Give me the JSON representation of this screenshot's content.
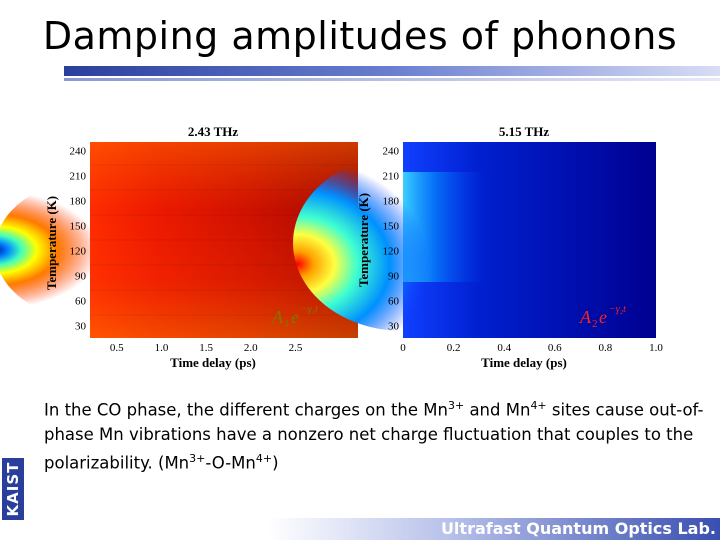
{
  "title": "Damping amplitudes of phonons",
  "caption": {
    "part1": "In the CO phase, the different charges on the Mn",
    "sup1": "3+",
    "part2": " and Mn",
    "sup2": "4+",
    "part3": " sites cause out-of-phase Mn vibrations have a nonzero net charge fluctuation that couples to the polarizability. (Mn",
    "sup3": "3+",
    "part4": "-O-Mn",
    "sup4": "4+",
    "part5": ")"
  },
  "logo_text": "KAIST",
  "footer": "Ultrafast Quantum Optics Lab.",
  "colors": {
    "accent": "#2a3f9c"
  },
  "chart_data": [
    {
      "type": "heatmap",
      "title": "2.43 THz",
      "xlabel": "Time delay (ps)",
      "ylabel": "Temperature (K)",
      "xticks": [
        "0.5",
        "1.0",
        "1.5",
        "2.0",
        "2.5"
      ],
      "yticks": [
        "30",
        "60",
        "90",
        "120",
        "150",
        "180",
        "210",
        "240"
      ],
      "xlim": [
        0.2,
        3.2
      ],
      "ylim": [
        15,
        250
      ],
      "annotation_main": "A",
      "annotation_sub": "1",
      "annotation_exp": "−γ₁t",
      "annotation_base": "e"
    },
    {
      "type": "heatmap",
      "title": "5.15 THz",
      "xlabel": "Time delay (ps)",
      "ylabel": "Temperature (K)",
      "xticks": [
        "0",
        "0.2",
        "0.4",
        "0.6",
        "0.8",
        "1.0"
      ],
      "yticks": [
        "30",
        "60",
        "90",
        "120",
        "150",
        "180",
        "210",
        "240"
      ],
      "xlim": [
        0,
        1.0
      ],
      "ylim": [
        15,
        250
      ],
      "annotation_main": "A",
      "annotation_sub": "2",
      "annotation_exp": "−γ₂t",
      "annotation_base": "e"
    }
  ]
}
